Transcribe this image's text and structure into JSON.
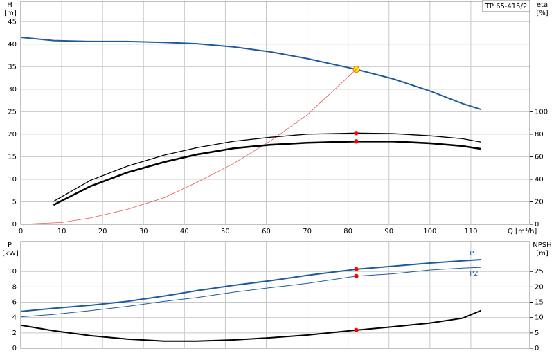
{
  "title": "TP 65-415/2",
  "chart_data": [
    {
      "type": "line",
      "y_label": "H",
      "y_unit": "[m]",
      "y2_label": "eta",
      "y2_unit": "[%]",
      "x_label": "Q [m³/h]",
      "xlim": [
        0,
        124.4
      ],
      "xticks": [
        0,
        10,
        20,
        30,
        40,
        50,
        60,
        70,
        80,
        90,
        100,
        110
      ],
      "ylim": [
        0,
        49.5
      ],
      "yticks": [
        0,
        5,
        10,
        15,
        20,
        25,
        30,
        35,
        40,
        45
      ],
      "y2lim": [
        0,
        198
      ],
      "y2ticks": [
        0,
        20,
        40,
        60,
        80,
        100
      ],
      "grid": true,
      "series": [
        {
          "color": "#1f5a9e",
          "line_width": 2,
          "x": [
            0,
            8,
            17,
            26,
            35,
            43,
            52,
            61,
            70,
            82,
            91,
            100,
            108,
            112.5
          ],
          "values": [
            41.5,
            40.8,
            40.6,
            40.6,
            40.4,
            40.1,
            39.4,
            38.3,
            36.8,
            34.4,
            32.3,
            29.6,
            26.8,
            25.5
          ],
          "marker": {
            "x": 82,
            "y": 34.4,
            "color": "#ffe000"
          }
        },
        {
          "color": "#f05050",
          "line_width": 0.8,
          "x": [
            0,
            10,
            17,
            26,
            35,
            43,
            52,
            61,
            70,
            82
          ],
          "values": [
            0,
            0.4,
            1.4,
            3.3,
            5.9,
            9.3,
            13.5,
            18.5,
            24.3,
            34.4
          ]
        },
        {
          "color": "#000000",
          "line_width": 1.3,
          "axis": "y2",
          "x": [
            8,
            17,
            26,
            35,
            43,
            52,
            61,
            70,
            82,
            91,
            100,
            108,
            112.5
          ],
          "values": [
            20.3,
            39,
            51.6,
            61.4,
            68,
            73.7,
            77.3,
            80,
            81,
            80.5,
            78.6,
            76,
            73
          ],
          "marker": {
            "x": 82,
            "y": 81,
            "color": "#ff0000"
          }
        },
        {
          "color": "#000000",
          "line_width": 2.6,
          "axis": "y2",
          "x": [
            8,
            17,
            26,
            35,
            43,
            52,
            61,
            70,
            82,
            91,
            100,
            108,
            112.5
          ],
          "values": [
            17.2,
            33.8,
            46,
            55.3,
            62,
            67.5,
            70.6,
            72.4,
            73.6,
            73.6,
            72,
            69.5,
            67
          ],
          "marker": {
            "x": 82,
            "y": 73.6,
            "color": "#ff0000"
          }
        }
      ]
    },
    {
      "type": "line",
      "y_label": "P",
      "y_unit": "[kW]",
      "y2_label": "NPSH",
      "y2_unit": "[m]",
      "xlim": [
        0,
        124.4
      ],
      "ylim": [
        0,
        13.9
      ],
      "yticks": [
        0,
        2,
        4,
        6,
        8,
        10
      ],
      "y2lim": [
        0,
        34.75
      ],
      "y2ticks": [
        0,
        5,
        10,
        15,
        20,
        25
      ],
      "grid": true,
      "series": [
        {
          "name": "P1",
          "color": "#1f5a9e",
          "line_width": 2,
          "x": [
            0,
            8,
            17,
            26,
            35,
            43,
            52,
            61,
            70,
            82,
            91,
            100,
            108,
            112.5
          ],
          "values": [
            4.8,
            5.2,
            5.6,
            6.1,
            6.8,
            7.5,
            8.2,
            8.8,
            9.5,
            10.3,
            10.7,
            11.1,
            11.4,
            11.55
          ],
          "marker": {
            "x": 82,
            "y": 10.3,
            "color": "#ff0000"
          }
        },
        {
          "name": "P2",
          "color": "#1f5a9e",
          "line_width": 1,
          "x": [
            0,
            8,
            17,
            26,
            35,
            43,
            52,
            61,
            70,
            82,
            91,
            100,
            108,
            112.5
          ],
          "values": [
            4.1,
            4.4,
            4.9,
            5.45,
            6.1,
            6.6,
            7.3,
            7.9,
            8.45,
            9.4,
            9.7,
            10.2,
            10.45,
            10.55
          ],
          "marker": {
            "x": 82,
            "y": 9.4,
            "color": "#ff0000"
          }
        },
        {
          "color": "#000000",
          "line_width": 2,
          "axis": "y2",
          "x": [
            0,
            8,
            17,
            26,
            35,
            43,
            52,
            61,
            70,
            82,
            91,
            100,
            108,
            112.5
          ],
          "values": [
            7.5,
            5.7,
            4.1,
            3.0,
            2.3,
            2.3,
            2.7,
            3.4,
            4.3,
            5.9,
            7.0,
            8.2,
            9.8,
            12.3
          ],
          "marker": {
            "x": 82,
            "y": 5.9,
            "color": "#ff0000"
          }
        }
      ]
    }
  ]
}
